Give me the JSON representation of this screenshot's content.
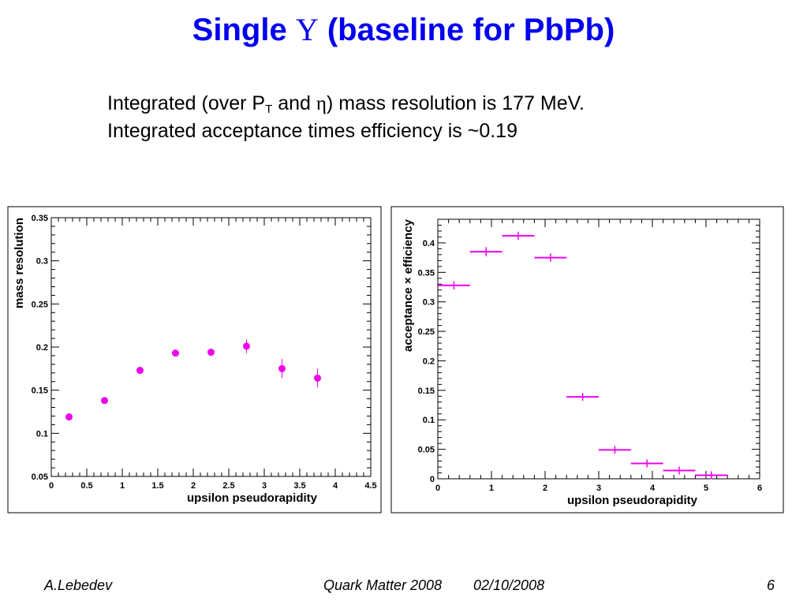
{
  "slide": {
    "title_pre": "Single ",
    "title_symbol": "Υ",
    "title_post": " (baseline for PbPb)",
    "line1_a": "Integrated (over P",
    "line1_sub": "T",
    "line1_b": " and ",
    "line1_eta": "η",
    "line1_c": ") mass resolution is 177 MeV.",
    "line2": "Integrated acceptance times efficiency is ~0.19"
  },
  "footer": {
    "author": "A.Lebedev",
    "conference": "Quark Matter 2008",
    "date": "02/10/2008",
    "page": "6"
  },
  "colors": {
    "title": "#0000ee",
    "marker": "#ee00ee"
  },
  "chart_data": [
    {
      "type": "scatter",
      "xlabel": "upsilon pseudorapidity",
      "ylabel": "mass resolution",
      "xlim": [
        0,
        4.5
      ],
      "ylim": [
        0.05,
        0.35
      ],
      "xticks": [
        "0",
        "0.5",
        "1",
        "1.5",
        "2",
        "2.5",
        "3",
        "3.5",
        "4",
        "4.5"
      ],
      "yticks": [
        "0.05",
        "0.1",
        "0.15",
        "0.2",
        "0.25",
        "0.3",
        "0.35"
      ],
      "x": [
        0.25,
        0.75,
        1.25,
        1.75,
        2.25,
        2.75,
        3.25,
        3.75
      ],
      "y": [
        0.119,
        0.138,
        0.173,
        0.193,
        0.194,
        0.201,
        0.175,
        0.164
      ],
      "yerr": [
        0.002,
        0.002,
        0.002,
        0.003,
        0.003,
        0.008,
        0.011,
        0.011
      ],
      "grid": false
    },
    {
      "type": "scatter",
      "xlabel": "upsilon pseudorapidity",
      "ylabel": "acceptance × efficiency",
      "xlim": [
        0,
        6
      ],
      "ylim": [
        0,
        0.44
      ],
      "xticks": [
        "0",
        "1",
        "2",
        "3",
        "4",
        "5",
        "6"
      ],
      "yticks": [
        "0",
        "0.05",
        "0.1",
        "0.15",
        "0.2",
        "0.25",
        "0.3",
        "0.35",
        "0.4"
      ],
      "x": [
        0.3,
        0.9,
        1.5,
        2.1,
        2.7,
        3.3,
        3.9,
        4.5,
        5.1
      ],
      "xerr": [
        0.3,
        0.3,
        0.3,
        0.3,
        0.3,
        0.3,
        0.3,
        0.3,
        0.3
      ],
      "y": [
        0.328,
        0.385,
        0.412,
        0.375,
        0.139,
        0.049,
        0.026,
        0.014,
        0.006
      ],
      "yerr": [
        0.007,
        0.008,
        0.007,
        0.007,
        0.003,
        0.001,
        0.001,
        0.001,
        0.001
      ],
      "grid": false
    }
  ]
}
